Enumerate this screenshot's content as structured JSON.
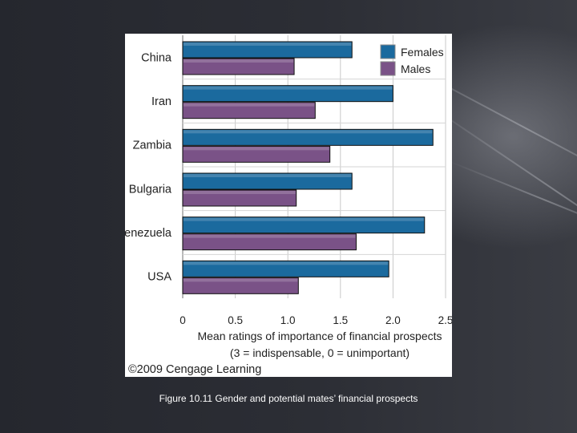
{
  "chart_data": {
    "type": "bar",
    "orientation": "horizontal",
    "categories": [
      "China",
      "Iran",
      "Zambia",
      "Bulgaria",
      "Venezuela",
      "USA"
    ],
    "series": [
      {
        "name": "Females",
        "values": [
          1.61,
          2.0,
          2.38,
          1.61,
          2.3,
          1.96
        ],
        "color": "#1b6a9e"
      },
      {
        "name": "Males",
        "values": [
          1.06,
          1.26,
          1.4,
          1.08,
          1.65,
          1.1
        ],
        "color": "#7a5287"
      }
    ],
    "xlabel_line1": "Mean ratings of importance of financial prospects",
    "xlabel_line2": "(3 = indispensable, 0 = unimportant)",
    "xlim": [
      0,
      2.5
    ],
    "xticks": [
      "0",
      "0.5",
      "1.0",
      "1.5",
      "2.0",
      "2.5"
    ],
    "grid": "vertical-lines",
    "legend_position": "top-right"
  },
  "copyright": "©2009 Cengage Learning",
  "caption": "Figure 10.11 Gender and potential mates’ financial prospects"
}
